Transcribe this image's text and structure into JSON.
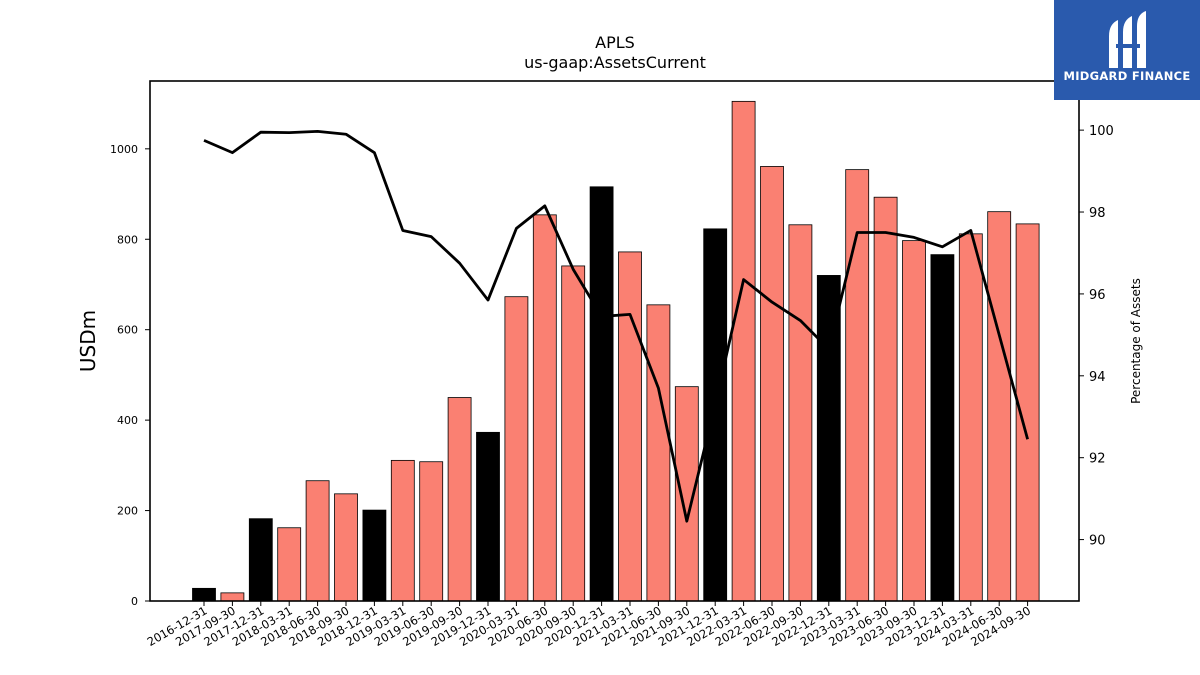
{
  "chart_data": {
    "type": "bar",
    "title": "APLS",
    "subtitle": "us-gaap:AssetsCurrent",
    "ylabel": "USDm",
    "y2label": "Percentage of Assets",
    "ylim": [
      0,
      1150
    ],
    "y2lim": [
      88.5,
      101.2
    ],
    "yticks": [
      0,
      200,
      400,
      600,
      800,
      1000
    ],
    "y2ticks": [
      90,
      92,
      94,
      96,
      98,
      100
    ],
    "categories": [
      "2016-12-31",
      "2017-09-30",
      "2017-12-31",
      "2018-03-31",
      "2018-06-30",
      "2018-09-30",
      "2018-12-31",
      "2019-03-31",
      "2019-06-30",
      "2019-09-30",
      "2019-12-31",
      "2020-03-31",
      "2020-06-30",
      "2020-09-30",
      "2020-12-31",
      "2021-03-31",
      "2021-06-30",
      "2021-09-30",
      "2021-12-31",
      "2022-03-31",
      "2022-06-30",
      "2022-09-30",
      "2022-12-31",
      "2023-03-31",
      "2023-06-30",
      "2023-09-30",
      "2023-12-31",
      "2024-03-31",
      "2024-06-30",
      "2024-09-30"
    ],
    "series": [
      {
        "type": "bar",
        "values": [
          28,
          18,
          182,
          162,
          266,
          237,
          201,
          311,
          308,
          450,
          373,
          673,
          854,
          741,
          916,
          772,
          655,
          474,
          823,
          1105,
          961,
          832,
          720,
          954,
          893,
          797,
          766,
          812,
          861,
          834
        ],
        "colors": [
          "#000000",
          "#fa8072",
          "#000000",
          "#fa8072",
          "#fa8072",
          "#fa8072",
          "#000000",
          "#fa8072",
          "#fa8072",
          "#fa8072",
          "#000000",
          "#fa8072",
          "#fa8072",
          "#fa8072",
          "#000000",
          "#fa8072",
          "#fa8072",
          "#fa8072",
          "#000000",
          "#fa8072",
          "#fa8072",
          "#fa8072",
          "#000000",
          "#fa8072",
          "#fa8072",
          "#fa8072",
          "#000000",
          "#fa8072",
          "#fa8072",
          "#fa8072"
        ]
      },
      {
        "type": "line",
        "axis": "right",
        "color": "#000000",
        "values": [
          99.75,
          99.45,
          99.95,
          99.94,
          99.97,
          99.9,
          99.45,
          97.55,
          97.4,
          96.75,
          95.85,
          97.6,
          98.15,
          96.6,
          95.45,
          95.5,
          93.7,
          90.45,
          93.3,
          96.35,
          95.8,
          95.35,
          94.65,
          97.5,
          97.5,
          97.38,
          97.15,
          97.55,
          95.0,
          92.45
        ]
      }
    ],
    "grid": false,
    "legend": "none"
  },
  "logo": {
    "text": "MIDGARD FINANCE",
    "color": "#2a5aad"
  }
}
